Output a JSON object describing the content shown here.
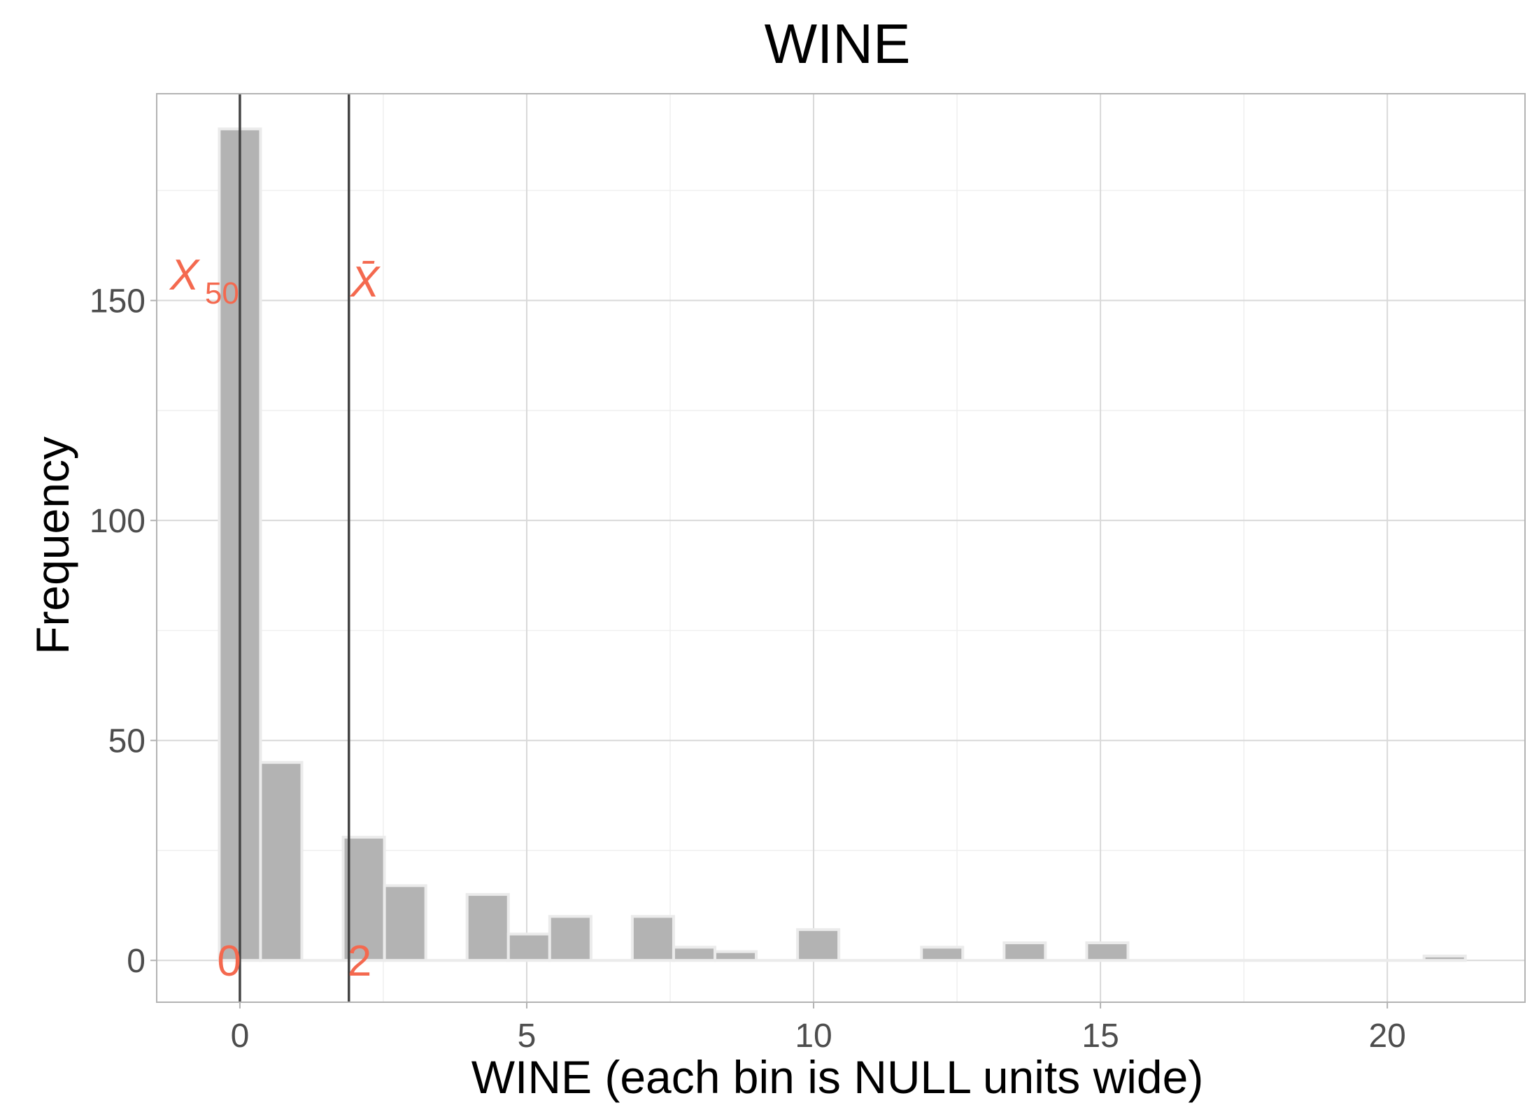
{
  "chart_data": {
    "type": "bar",
    "title": "WINE",
    "xlabel": "WINE (each bin is NULL units wide)",
    "ylabel": "Frequency",
    "xlim": [
      -1.45,
      22.4
    ],
    "ylim": [
      -9.5,
      197
    ],
    "xticks": [
      0,
      5,
      10,
      15,
      20
    ],
    "yticks": [
      0,
      50,
      100,
      150
    ],
    "bin_width": 0.72,
    "bins": [
      {
        "x": 0.0,
        "count": 189
      },
      {
        "x": 0.72,
        "count": 45
      },
      {
        "x": 2.16,
        "count": 28
      },
      {
        "x": 2.88,
        "count": 17
      },
      {
        "x": 4.32,
        "count": 15
      },
      {
        "x": 5.04,
        "count": 6
      },
      {
        "x": 5.76,
        "count": 10
      },
      {
        "x": 7.2,
        "count": 10
      },
      {
        "x": 7.92,
        "count": 3
      },
      {
        "x": 8.64,
        "count": 2
      },
      {
        "x": 10.08,
        "count": 7
      },
      {
        "x": 12.24,
        "count": 3
      },
      {
        "x": 13.68,
        "count": 4
      },
      {
        "x": 15.12,
        "count": 4
      },
      {
        "x": 21.0,
        "count": 1
      }
    ],
    "baseline_range": [
      -0.36,
      21.36
    ],
    "reference_lines": [
      {
        "name": "median",
        "x": 0,
        "label": "0",
        "symbol": "X",
        "subscript": "50"
      },
      {
        "name": "mean",
        "x": 1.9,
        "label": "2",
        "symbol": "X̄",
        "subscript": ""
      }
    ],
    "colors": {
      "bar_fill": "#b3b3b3",
      "bar_outline": "#ebebeb",
      "grid_major": "#d9d9d9",
      "grid_minor": "#efefef",
      "panel_border": "#b3b3b3",
      "ref_line": "#444444",
      "annotation": "#f4694f"
    },
    "grid": true
  }
}
